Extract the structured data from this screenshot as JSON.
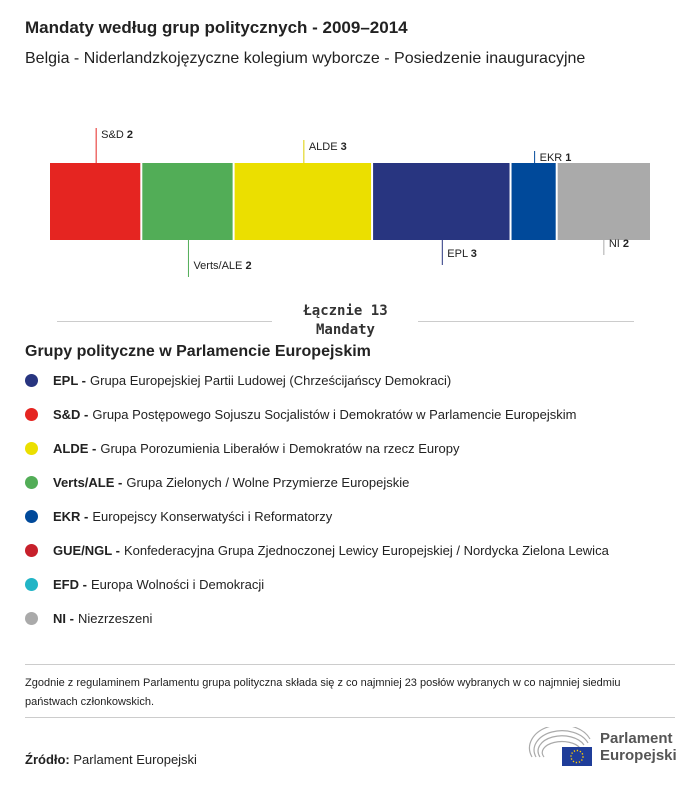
{
  "title": "Mandaty według grup politycznych - 2009–2014",
  "subtitle": "Belgia - Niderlandzkojęzyczne kolegium wyborcze - Posiedzenie inauguracyjne",
  "chart_data": {
    "type": "bar",
    "orientation": "stacked-horizontal",
    "categories": [
      "S&D",
      "Verts/ALE",
      "ALDE",
      "EPL",
      "EKR",
      "NI"
    ],
    "values": [
      2,
      2,
      3,
      3,
      1,
      2
    ],
    "colors": [
      "#e52521",
      "#52ad57",
      "#ebdf00",
      "#283580",
      "#00499a",
      "#aaaaaa"
    ],
    "total_label": [
      "Łącznie 13",
      "Mandaty"
    ]
  },
  "legend_title": "Grupy polityczne w Parlamencie Europejskim",
  "legend": [
    {
      "abbr": "EPL -",
      "name": "Grupa Europejskiej Partii Ludowej (Chrześcijańscy Demokraci)",
      "color": "#283580"
    },
    {
      "abbr": "S&D -",
      "name": "Grupa Postępowego Sojuszu Socjalistów i Demokratów w Parlamencie Europejskim",
      "color": "#e52521"
    },
    {
      "abbr": "ALDE -",
      "name": "Grupa Porozumienia Liberałów i Demokratów na rzecz Europy",
      "color": "#ebdf00"
    },
    {
      "abbr": "Verts/ALE -",
      "name": "Grupa Zielonych / Wolne Przymierze Europejskie",
      "color": "#52ad57"
    },
    {
      "abbr": "EKR -",
      "name": "Europejscy Konserwatyści i Reformatorzy",
      "color": "#00499a"
    },
    {
      "abbr": "GUE/NGL -",
      "name": "Konfederacyjna Grupa Zjednoczonej Lewicy Europejskiej / Nordycka Zielona Lewica",
      "color": "#c7202b"
    },
    {
      "abbr": "EFD -",
      "name": "Europa Wolności i Demokracji",
      "color": "#22b5c6"
    },
    {
      "abbr": "NI -",
      "name": "Niezrzeszeni",
      "color": "#aaaaaa"
    }
  ],
  "note": "Zgodnie z regulaminem Parlamentu grupa polityczna składa się z co najmniej 23 posłów wybranych w co najmniej siedmiu państwach członkowskich.",
  "source_label": "Źródło:",
  "source": "Parlament Europejski",
  "logo": [
    "Parlament",
    "Europejski"
  ]
}
